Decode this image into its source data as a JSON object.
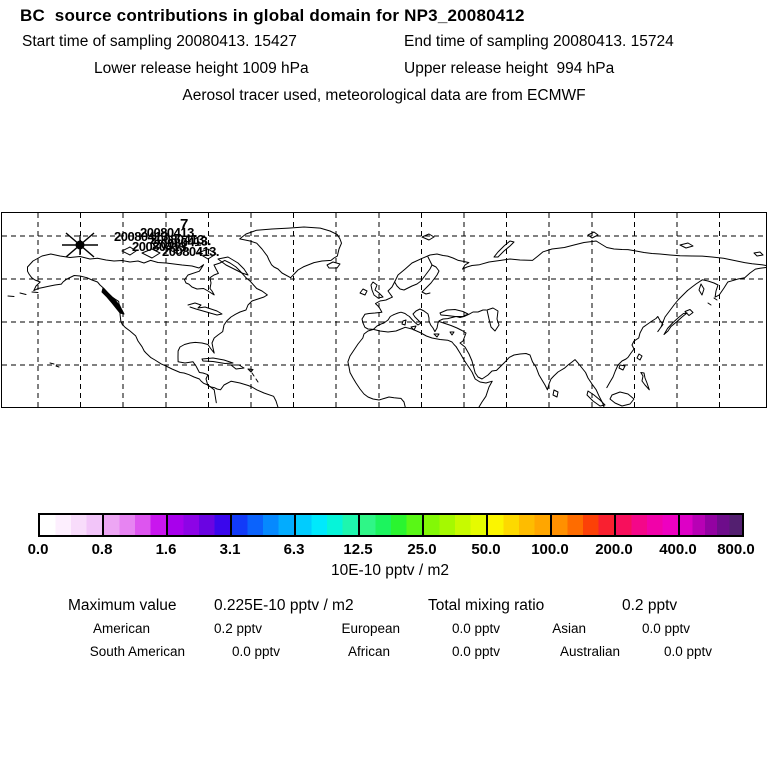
{
  "header": {
    "title": "BC  source contributions in global domain for NP3_20080412",
    "start_time": "Start time of sampling 20080413. 15427",
    "end_time": "End time of sampling 20080413. 15724",
    "lower_release": "Lower release height 1009 hPa",
    "upper_release": "Upper release height  994 hPa",
    "tracer_note": "Aerosol tracer used, meteorological data are from ECMWF"
  },
  "map": {
    "release_marker": "asterisk-star",
    "cluster_label": "20080413.",
    "cluster_digit": "7"
  },
  "chart_data": {
    "type": "heatmap",
    "title": "BC  source contributions in global domain for NP3_20080412",
    "subtitle": "Aerosol tracer used, meteorological data are from ECMWF",
    "colorbar": {
      "unit": "10E-10 pptv / m2",
      "ticks": [
        "0.0",
        "0.8",
        "1.6",
        "3.1",
        "6.3",
        "12.5",
        "25.0",
        "50.0",
        "100.0",
        "200.0",
        "400.0",
        "800.0"
      ],
      "scale": "log2-like doubling boundaries",
      "segments": [
        [
          "#ffffff",
          "#fdeffe",
          "#f8dcfb",
          "#f2c5f9"
        ],
        [
          "#eda6f4",
          "#e784f2",
          "#dd55ef",
          "#c916ee"
        ],
        [
          "#a800ec",
          "#8d04e6",
          "#6a04e2",
          "#3a07ec"
        ],
        [
          "#123bf8",
          "#0b63fc",
          "#0689fe",
          "#03acfe"
        ],
        [
          "#01ccfe",
          "#00e9fc",
          "#06f4d9",
          "#1ef6ae"
        ],
        [
          "#2ff687",
          "#1cf45e",
          "#2af52f",
          "#59f716"
        ],
        [
          "#83f806",
          "#a5f901",
          "#c7fa00",
          "#e5fb00"
        ],
        [
          "#fbf500",
          "#fdd900",
          "#febc00",
          "#ffa600"
        ],
        [
          "#ff9000",
          "#fe6c00",
          "#fc4107",
          "#f92030"
        ],
        [
          "#f70f5c",
          "#f40789",
          "#f102a9",
          "#ee00c0"
        ],
        [
          "#dd00c6",
          "#b801b5",
          "#9302a2",
          "#6e0d8b",
          "#531f70"
        ]
      ]
    },
    "stats": {
      "maximum_value_label": "Maximum value",
      "maximum_value": "0.225E-10 pptv / m2",
      "total_mixing_ratio_label": "Total mixing ratio",
      "total_mixing_ratio": "0.2 pptv",
      "regions": [
        {
          "name": "American",
          "value": "0.2 pptv"
        },
        {
          "name": "European",
          "value": "0.0 pptv"
        },
        {
          "name": "Asian",
          "value": "0.0 pptv"
        },
        {
          "name": "South American",
          "value": "0.0 pptv"
        },
        {
          "name": "African",
          "value": "0.0 pptv"
        },
        {
          "name": "Australian",
          "value": "0.0 pptv"
        }
      ]
    },
    "map_extent": {
      "lon": [
        -180,
        180
      ],
      "lat": [
        0,
        90
      ],
      "grid_spacing_deg": 20
    }
  }
}
